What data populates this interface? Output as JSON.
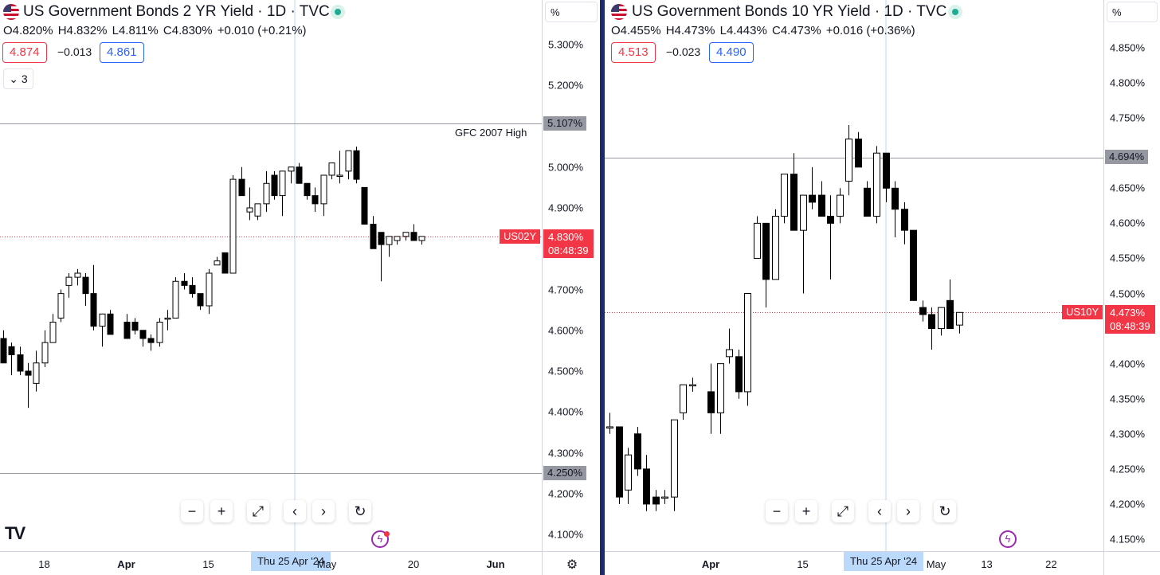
{
  "chart_data": [
    {
      "type": "candlestick",
      "title": "US Government Bonds 2 YR Yield · 1D · TVC",
      "symbol": "US02Y",
      "ohlc_summary": {
        "open": "O4.820%",
        "high": "H4.832%",
        "low": "L4.811%",
        "close": "C4.830%",
        "change": "+0.010 (+0.21%)"
      },
      "bid": "4.874",
      "spread": "−0.013",
      "ask": "4.861",
      "indicator_count": "3",
      "unit_label": "%",
      "ylim": [
        4.06,
        5.36
      ],
      "y_ticks": [
        {
          "value": 5.3,
          "label": "5.300%"
        },
        {
          "value": 5.2,
          "label": "5.200%"
        },
        {
          "value": 5.0,
          "label": "5.000%"
        },
        {
          "value": 4.9,
          "label": "4.900%"
        },
        {
          "value": 4.7,
          "label": "4.700%"
        },
        {
          "value": 4.6,
          "label": "4.600%"
        },
        {
          "value": 4.5,
          "label": "4.500%"
        },
        {
          "value": 4.4,
          "label": "4.400%"
        },
        {
          "value": 4.3,
          "label": "4.300%"
        },
        {
          "value": 4.2,
          "label": "4.200%"
        },
        {
          "value": 4.1,
          "label": "4.100%"
        }
      ],
      "x_ticks": [
        {
          "x": "2024-03-18",
          "label": "18",
          "bold": false
        },
        {
          "x": "2024-04-01",
          "label": "Apr",
          "bold": true
        },
        {
          "x": "2024-04-15",
          "label": "15",
          "bold": false
        },
        {
          "x": "2024-05-20",
          "label": "20",
          "bold": false
        },
        {
          "x": "2024-06-03",
          "label": "Jun",
          "bold": true
        }
      ],
      "crosshair_date_label": "Thu 25 Apr '24",
      "crosshair_suffix": "May",
      "horizontal_lines": [
        {
          "value": 5.107,
          "label": "5.107%",
          "annotation": "GFC 2007 High"
        },
        {
          "value": 4.25,
          "label": "4.250%",
          "annotation": ""
        }
      ],
      "current": {
        "value": 4.83,
        "label": "4.830%",
        "countdown": "08:48:39"
      },
      "candles": [
        {
          "date": "2024-03-11",
          "o": 4.58,
          "h": 4.6,
          "l": 4.52,
          "c": 4.52
        },
        {
          "date": "2024-03-12",
          "o": 4.56,
          "h": 4.57,
          "l": 4.49,
          "c": 4.54
        },
        {
          "date": "2024-03-13",
          "o": 4.54,
          "h": 4.56,
          "l": 4.49,
          "c": 4.5
        },
        {
          "date": "2024-03-14",
          "o": 4.5,
          "h": 4.52,
          "l": 4.41,
          "c": 4.49
        },
        {
          "date": "2024-03-15",
          "o": 4.47,
          "h": 4.55,
          "l": 4.45,
          "c": 4.52
        },
        {
          "date": "2024-03-18",
          "o": 4.52,
          "h": 4.6,
          "l": 4.51,
          "c": 4.57
        },
        {
          "date": "2024-03-19",
          "o": 4.57,
          "h": 4.64,
          "l": 4.57,
          "c": 4.62
        },
        {
          "date": "2024-03-20",
          "o": 4.63,
          "h": 4.7,
          "l": 4.62,
          "c": 4.69
        },
        {
          "date": "2024-03-21",
          "o": 4.71,
          "h": 4.74,
          "l": 4.68,
          "c": 4.73
        },
        {
          "date": "2024-03-22",
          "o": 4.73,
          "h": 4.75,
          "l": 4.71,
          "c": 4.74
        },
        {
          "date": "2024-03-25",
          "o": 4.73,
          "h": 4.74,
          "l": 4.66,
          "c": 4.69
        },
        {
          "date": "2024-03-26",
          "o": 4.69,
          "h": 4.76,
          "l": 4.6,
          "c": 4.61
        },
        {
          "date": "2024-03-27",
          "o": 4.61,
          "h": 4.64,
          "l": 4.56,
          "c": 4.64
        },
        {
          "date": "2024-03-28",
          "o": 4.64,
          "h": 4.65,
          "l": 4.59,
          "c": 4.59
        },
        {
          "date": "2024-04-01",
          "o": 4.62,
          "h": 4.64,
          "l": 4.58,
          "c": 4.58
        },
        {
          "date": "2024-04-02",
          "o": 4.62,
          "h": 4.63,
          "l": 4.59,
          "c": 4.6
        },
        {
          "date": "2024-04-03",
          "o": 4.6,
          "h": 4.6,
          "l": 4.56,
          "c": 4.58
        },
        {
          "date": "2024-04-04",
          "o": 4.58,
          "h": 4.59,
          "l": 4.55,
          "c": 4.57
        },
        {
          "date": "2024-04-05",
          "o": 4.57,
          "h": 4.63,
          "l": 4.56,
          "c": 4.62
        },
        {
          "date": "2024-04-08",
          "o": 4.63,
          "h": 4.65,
          "l": 4.6,
          "c": 4.63
        },
        {
          "date": "2024-04-09",
          "o": 4.63,
          "h": 4.73,
          "l": 4.63,
          "c": 4.72
        },
        {
          "date": "2024-04-10",
          "o": 4.72,
          "h": 4.74,
          "l": 4.7,
          "c": 4.71
        },
        {
          "date": "2024-04-11",
          "o": 4.71,
          "h": 4.73,
          "l": 4.68,
          "c": 4.69
        },
        {
          "date": "2024-04-12",
          "o": 4.69,
          "h": 4.69,
          "l": 4.65,
          "c": 4.66
        },
        {
          "date": "2024-04-15",
          "o": 4.66,
          "h": 4.75,
          "l": 4.64,
          "c": 4.74
        },
        {
          "date": "2024-04-16",
          "o": 4.76,
          "h": 4.78,
          "l": 4.76,
          "c": 4.77
        },
        {
          "date": "2024-04-17",
          "o": 4.79,
          "h": 4.79,
          "l": 4.74,
          "c": 4.74
        },
        {
          "date": "2024-04-18",
          "o": 4.74,
          "h": 4.98,
          "l": 4.74,
          "c": 4.97
        },
        {
          "date": "2024-04-19",
          "o": 4.97,
          "h": 5.0,
          "l": 4.93,
          "c": 4.93
        },
        {
          "date": "2024-04-22",
          "o": 4.89,
          "h": 4.95,
          "l": 4.87,
          "c": 4.9
        },
        {
          "date": "2024-04-23",
          "o": 4.88,
          "h": 4.91,
          "l": 4.87,
          "c": 4.91
        },
        {
          "date": "2024-04-24",
          "o": 4.91,
          "h": 4.99,
          "l": 4.89,
          "c": 4.96
        },
        {
          "date": "2024-04-25",
          "o": 4.98,
          "h": 4.99,
          "l": 4.92,
          "c": 4.93
        },
        {
          "date": "2024-04-26",
          "o": 4.93,
          "h": 4.99,
          "l": 4.88,
          "c": 4.99
        },
        {
          "date": "2024-04-29",
          "o": 4.99,
          "h": 5.0,
          "l": 4.96,
          "c": 5.0
        },
        {
          "date": "2024-04-30",
          "o": 5.0,
          "h": 5.01,
          "l": 4.96,
          "c": 4.96
        },
        {
          "date": "2024-05-01",
          "o": 4.96,
          "h": 4.96,
          "l": 4.92,
          "c": 4.93
        },
        {
          "date": "2024-05-02",
          "o": 4.93,
          "h": 4.95,
          "l": 4.89,
          "c": 4.91
        },
        {
          "date": "2024-05-03",
          "o": 4.91,
          "h": 4.98,
          "l": 4.88,
          "c": 4.98
        },
        {
          "date": "2024-05-06",
          "o": 4.98,
          "h": 5.01,
          "l": 4.97,
          "c": 5.01
        },
        {
          "date": "2024-05-07",
          "o": 4.98,
          "h": 5.04,
          "l": 4.96,
          "c": 4.98
        },
        {
          "date": "2024-05-08",
          "o": 4.99,
          "h": 5.04,
          "l": 4.97,
          "c": 5.04
        },
        {
          "date": "2024-05-09",
          "o": 5.04,
          "h": 5.05,
          "l": 4.96,
          "c": 4.97
        },
        {
          "date": "2024-05-10",
          "o": 4.95,
          "h": 4.95,
          "l": 4.86,
          "c": 4.86
        },
        {
          "date": "2024-05-13",
          "o": 4.86,
          "h": 4.88,
          "l": 4.8,
          "c": 4.8
        },
        {
          "date": "2024-05-14",
          "o": 4.84,
          "h": 4.84,
          "l": 4.72,
          "c": 4.81
        },
        {
          "date": "2024-05-15",
          "o": 4.81,
          "h": 4.83,
          "l": 4.78,
          "c": 4.83
        },
        {
          "date": "2024-05-16",
          "o": 4.82,
          "h": 4.83,
          "l": 4.81,
          "c": 4.83
        },
        {
          "date": "2024-05-17",
          "o": 4.83,
          "h": 4.84,
          "l": 4.82,
          "c": 4.84
        },
        {
          "date": "2024-05-20",
          "o": 4.84,
          "h": 4.86,
          "l": 4.82,
          "c": 4.82
        },
        {
          "date": "2024-05-21",
          "o": 4.82,
          "h": 4.83,
          "l": 4.81,
          "c": 4.83
        }
      ]
    },
    {
      "type": "candlestick",
      "title": "US Government Bonds 10 YR Yield · 1D · TVC",
      "symbol": "US10Y",
      "ohlc_summary": {
        "open": "O4.455%",
        "high": "H4.473%",
        "low": "L4.443%",
        "close": "C4.473%",
        "change": "+0.016 (+0.36%)"
      },
      "bid": "4.513",
      "spread": "−0.023",
      "ask": "4.490",
      "unit_label": "%",
      "ylim": [
        4.135,
        4.885
      ],
      "y_ticks": [
        {
          "value": 4.85,
          "label": "4.850%"
        },
        {
          "value": 4.8,
          "label": "4.800%"
        },
        {
          "value": 4.75,
          "label": "4.750%"
        },
        {
          "value": 4.65,
          "label": "4.650%"
        },
        {
          "value": 4.6,
          "label": "4.600%"
        },
        {
          "value": 4.55,
          "label": "4.550%"
        },
        {
          "value": 4.5,
          "label": "4.500%"
        },
        {
          "value": 4.4,
          "label": "4.400%"
        },
        {
          "value": 4.35,
          "label": "4.350%"
        },
        {
          "value": 4.3,
          "label": "4.300%"
        },
        {
          "value": 4.25,
          "label": "4.250%"
        },
        {
          "value": 4.2,
          "label": "4.200%"
        },
        {
          "value": 4.15,
          "label": "4.150%"
        }
      ],
      "x_ticks": [
        {
          "x": "2024-04-01",
          "label": "Apr",
          "bold": true
        },
        {
          "x": "2024-04-15",
          "label": "15",
          "bold": false
        },
        {
          "x": "2024-05-13",
          "label": "13",
          "bold": false
        },
        {
          "x": "2024-05-22",
          "label": "22",
          "bold": false
        }
      ],
      "crosshair_date_label": "Thu 25 Apr '24",
      "crosshair_suffix": "May",
      "horizontal_lines": [
        {
          "value": 4.694,
          "label": "4.694%",
          "annotation": ""
        }
      ],
      "current": {
        "value": 4.473,
        "label": "4.473%",
        "countdown": "08:48:39"
      },
      "candles": [
        {
          "date": "2024-03-15",
          "o": 4.31,
          "h": 4.33,
          "l": 4.3,
          "c": 4.31
        },
        {
          "date": "2024-03-18",
          "o": 4.31,
          "h": 4.31,
          "l": 4.2,
          "c": 4.21
        },
        {
          "date": "2024-03-19",
          "o": 4.22,
          "h": 4.28,
          "l": 4.2,
          "c": 4.27
        },
        {
          "date": "2024-03-20",
          "o": 4.3,
          "h": 4.31,
          "l": 4.24,
          "c": 4.25
        },
        {
          "date": "2024-03-21",
          "o": 4.25,
          "h": 4.27,
          "l": 4.19,
          "c": 4.2
        },
        {
          "date": "2024-03-22",
          "o": 4.21,
          "h": 4.22,
          "l": 4.19,
          "c": 4.2
        },
        {
          "date": "2024-03-25",
          "o": 4.21,
          "h": 4.22,
          "l": 4.2,
          "c": 4.21
        },
        {
          "date": "2024-03-26",
          "o": 4.21,
          "h": 4.32,
          "l": 4.19,
          "c": 4.32
        },
        {
          "date": "2024-03-27",
          "o": 4.33,
          "h": 4.37,
          "l": 4.32,
          "c": 4.37
        },
        {
          "date": "2024-03-28",
          "o": 4.37,
          "h": 4.38,
          "l": 4.36,
          "c": 4.37
        },
        {
          "date": "2024-04-01",
          "o": 4.36,
          "h": 4.4,
          "l": 4.3,
          "c": 4.33
        },
        {
          "date": "2024-04-02",
          "o": 4.33,
          "h": 4.4,
          "l": 4.3,
          "c": 4.4
        },
        {
          "date": "2024-04-03",
          "o": 4.41,
          "h": 4.45,
          "l": 4.4,
          "c": 4.42
        },
        {
          "date": "2024-04-04",
          "o": 4.41,
          "h": 4.42,
          "l": 4.35,
          "c": 4.36
        },
        {
          "date": "2024-04-05",
          "o": 4.36,
          "h": 4.5,
          "l": 4.34,
          "c": 4.5
        },
        {
          "date": "2024-04-08",
          "o": 4.55,
          "h": 4.61,
          "l": 4.55,
          "c": 4.6
        },
        {
          "date": "2024-04-09",
          "o": 4.6,
          "h": 4.6,
          "l": 4.48,
          "c": 4.52
        },
        {
          "date": "2024-04-10",
          "o": 4.52,
          "h": 4.62,
          "l": 4.52,
          "c": 4.61
        },
        {
          "date": "2024-04-11",
          "o": 4.61,
          "h": 4.67,
          "l": 4.6,
          "c": 4.67
        },
        {
          "date": "2024-04-12",
          "o": 4.67,
          "h": 4.7,
          "l": 4.59,
          "c": 4.59
        },
        {
          "date": "2024-04-15",
          "o": 4.59,
          "h": 4.64,
          "l": 4.5,
          "c": 4.64
        },
        {
          "date": "2024-04-16",
          "o": 4.64,
          "h": 4.68,
          "l": 4.62,
          "c": 4.63
        },
        {
          "date": "2024-04-17",
          "o": 4.64,
          "h": 4.66,
          "l": 4.61,
          "c": 4.61
        },
        {
          "date": "2024-04-18",
          "o": 4.61,
          "h": 4.64,
          "l": 4.52,
          "c": 4.6
        },
        {
          "date": "2024-04-19",
          "o": 4.61,
          "h": 4.65,
          "l": 4.6,
          "c": 4.64
        },
        {
          "date": "2024-04-22",
          "o": 4.66,
          "h": 4.74,
          "l": 4.64,
          "c": 4.72
        },
        {
          "date": "2024-04-23",
          "o": 4.72,
          "h": 4.73,
          "l": 4.68,
          "c": 4.68
        },
        {
          "date": "2024-04-24",
          "o": 4.65,
          "h": 4.66,
          "l": 4.61,
          "c": 4.61
        },
        {
          "date": "2024-04-25",
          "o": 4.61,
          "h": 4.71,
          "l": 4.6,
          "c": 4.7
        },
        {
          "date": "2024-04-26",
          "o": 4.7,
          "h": 4.7,
          "l": 4.63,
          "c": 4.65
        },
        {
          "date": "2024-04-29",
          "o": 4.65,
          "h": 4.66,
          "l": 4.58,
          "c": 4.62
        },
        {
          "date": "2024-04-30",
          "o": 4.62,
          "h": 4.63,
          "l": 4.57,
          "c": 4.59
        },
        {
          "date": "2024-05-01",
          "o": 4.59,
          "h": 4.59,
          "l": 4.49,
          "c": 4.49
        },
        {
          "date": "2024-05-02",
          "o": 4.48,
          "h": 4.49,
          "l": 4.46,
          "c": 4.47
        },
        {
          "date": "2024-05-03",
          "o": 4.47,
          "h": 4.48,
          "l": 4.42,
          "c": 4.45
        },
        {
          "date": "2024-05-06",
          "o": 4.45,
          "h": 4.48,
          "l": 4.44,
          "c": 4.48
        },
        {
          "date": "2024-05-07",
          "o": 4.49,
          "h": 4.52,
          "l": 4.45,
          "c": 4.45
        },
        {
          "date": "2024-05-08",
          "o": 4.455,
          "h": 4.473,
          "l": 4.443,
          "c": 4.473
        }
      ]
    }
  ],
  "navigation": {
    "zoom_out": "−",
    "zoom_in": "+",
    "scroll_left": "‹",
    "scroll_right": "›"
  },
  "colors": {
    "bull_candle": "#ffffff",
    "bear_candle": "#000000",
    "current_price": "#f23645",
    "highlight_line": "#9598a1",
    "crosshair": "#bbd9fb",
    "bid": "#f23645",
    "ask": "#2962ff",
    "accent": "#9c27b0"
  },
  "icons": [
    "us-flag-icon",
    "live-indicator-icon",
    "chevron-down-icon",
    "fullscreen-icon",
    "reset-icon",
    "tradingview-logo",
    "flash-icon",
    "gear-icon"
  ]
}
